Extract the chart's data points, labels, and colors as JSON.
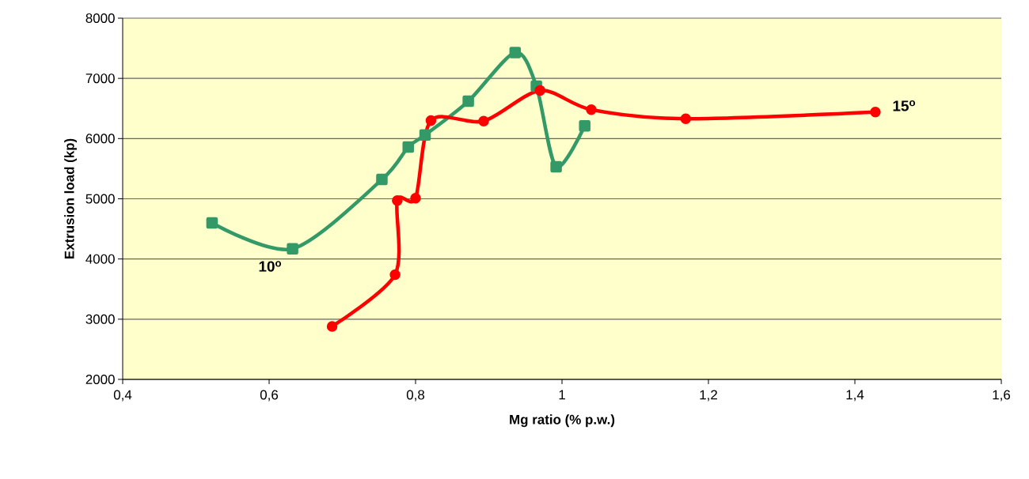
{
  "chart_data": {
    "type": "line",
    "xlabel": "Mg ratio (% p.w.)",
    "ylabel": "Extrusion load (kp)",
    "xlim": [
      0.4,
      1.6
    ],
    "xticks": [
      {
        "value": 0.4,
        "label": "0,4"
      },
      {
        "value": 0.6,
        "label": "0,6"
      },
      {
        "value": 0.8,
        "label": "0,8"
      },
      1,
      {
        "value": 1.2,
        "label": "1,2"
      },
      {
        "value": 1.4,
        "label": "1,4"
      },
      {
        "value": 1.6,
        "label": "1,6"
      }
    ],
    "ylim": [
      2000,
      8000
    ],
    "yticks": [
      2000,
      3000,
      4000,
      5000,
      6000,
      7000,
      8000
    ],
    "grid": "y",
    "legend": false,
    "series": [
      {
        "name": "10$^{o}$",
        "color": "#339966",
        "marker": "square",
        "x": [
          0.522,
          0.632,
          0.754,
          0.79,
          0.813,
          0.872,
          0.936,
          0.965,
          0.992,
          1.031
        ],
        "values": [
          4600,
          4170,
          5320,
          5860,
          6060,
          6620,
          7430,
          6870,
          5530,
          6210
        ]
      },
      {
        "name": "15$^{o}$",
        "color": "#ff0000",
        "marker": "circle",
        "x": [
          0.686,
          0.772,
          0.775,
          0.8,
          0.821,
          0.893,
          0.97,
          1.04,
          1.169,
          1.428
        ],
        "values": [
          2880,
          3740,
          4970,
          5010,
          6300,
          6290,
          6800,
          6480,
          6330,
          6440
        ]
      }
    ]
  }
}
